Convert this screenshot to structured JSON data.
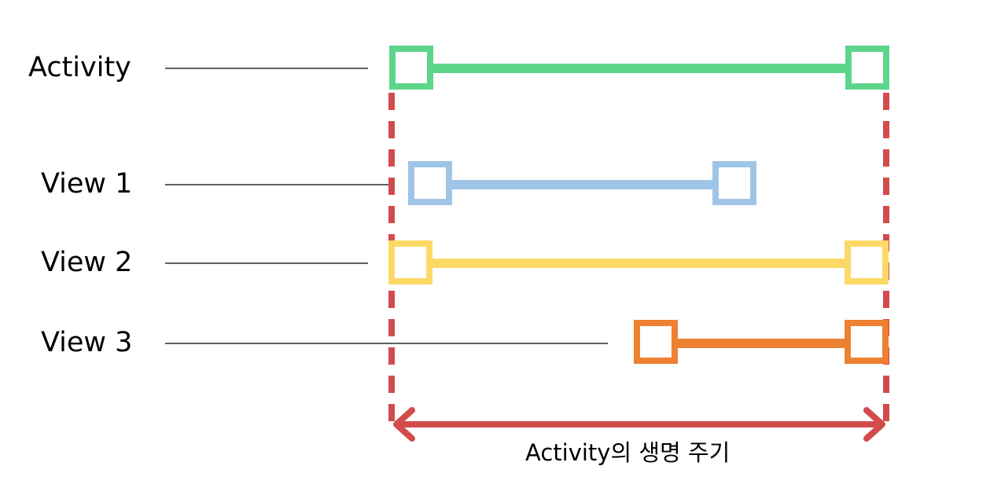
{
  "rows": [
    {
      "key": "activity",
      "label": "Activity",
      "color": "#5dd68b"
    },
    {
      "key": "view1",
      "label": "View 1",
      "color": "#9fc5e6"
    },
    {
      "key": "view2",
      "label": "View 2",
      "color": "#fcd966"
    },
    {
      "key": "view3",
      "label": "View 3",
      "color": "#ee8131"
    }
  ],
  "lifecycle": {
    "label": "Activity의 생명 주기",
    "color": "#d24c4c"
  }
}
